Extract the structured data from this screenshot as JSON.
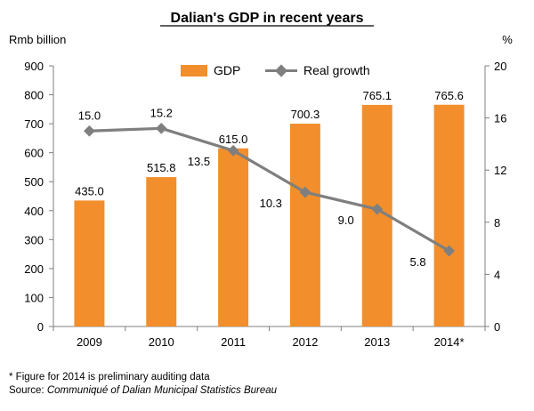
{
  "chart_data": {
    "type": "bar",
    "title": "Dalian's GDP in recent years",
    "ylabel_left": "Rmb billion",
    "ylabel_right": "%",
    "categories": [
      "2009",
      "2010",
      "2011",
      "2012",
      "2013",
      "2014*"
    ],
    "ylim_left": [
      0,
      900
    ],
    "yticks_left": [
      0,
      100,
      200,
      300,
      400,
      500,
      600,
      700,
      800,
      900
    ],
    "ylim_right": [
      0,
      20
    ],
    "yticks_right": [
      0,
      4,
      8,
      12,
      16,
      20
    ],
    "grid": false,
    "legend_position": "top",
    "series": [
      {
        "name": "GDP",
        "kind": "bar",
        "axis": "left",
        "color": "#f28e2b",
        "values": [
          435.0,
          515.8,
          615.0,
          700.3,
          765.1,
          765.6
        ],
        "labels": [
          "435.0",
          "515.8",
          "615.0",
          "700.3",
          "765.1",
          "765.6"
        ]
      },
      {
        "name": "Real growth",
        "kind": "line",
        "axis": "right",
        "color": "#7f7f7f",
        "values": [
          15.0,
          15.2,
          13.5,
          10.3,
          9.0,
          5.8
        ],
        "labels": [
          "15.0",
          "15.2",
          "13.5",
          "10.3",
          "9.0",
          "5.8"
        ]
      }
    ]
  },
  "footnote": {
    "note": "* Figure for 2014 is preliminary auditing data",
    "source_prefix": "Source: ",
    "source_name": "Communiqué of Dalian Municipal Statistics Bureau"
  }
}
